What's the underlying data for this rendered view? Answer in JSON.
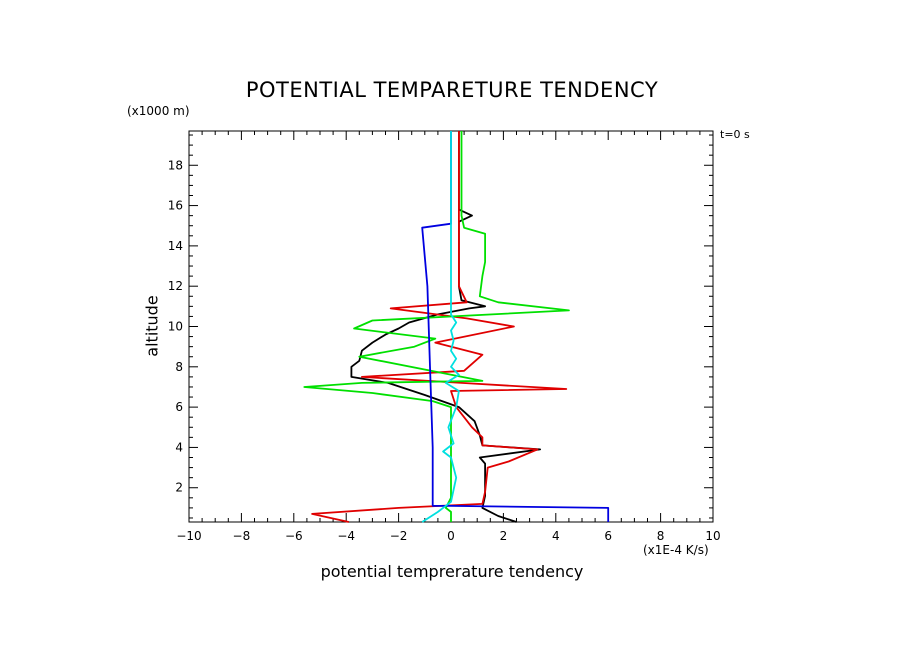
{
  "chart_data": {
    "type": "line",
    "title": "POTENTIAL TEMPARETURE TENDENCY",
    "xlabel": "potential temprerature tendency",
    "ylabel": "altitude",
    "x_unit": "(x1E-4 K/s)",
    "y_unit": "(x1000 m)",
    "time_label": "t=0 s",
    "xlim": [
      -10,
      10
    ],
    "ylim": [
      0.3,
      19.7
    ],
    "xticks": [
      -10,
      -8,
      -6,
      -4,
      -2,
      0,
      2,
      4,
      6,
      8,
      10
    ],
    "yticks": [
      2,
      4,
      6,
      8,
      10,
      12,
      14,
      16,
      18
    ],
    "grid": false,
    "series": [
      {
        "color": "#000000",
        "points": [
          [
            2.5,
            0.3
          ],
          [
            1.8,
            0.6
          ],
          [
            1.2,
            1.0
          ],
          [
            1.3,
            1.6
          ],
          [
            1.3,
            2.5
          ],
          [
            1.3,
            3.2
          ],
          [
            1.1,
            3.5
          ],
          [
            3.4,
            3.9
          ],
          [
            1.2,
            4.1
          ],
          [
            1.1,
            4.6
          ],
          [
            0.9,
            5.3
          ],
          [
            0.3,
            6.0
          ],
          [
            -1.0,
            6.6
          ],
          [
            -2.4,
            7.2
          ],
          [
            -3.8,
            7.5
          ],
          [
            -3.8,
            8.0
          ],
          [
            -3.5,
            8.3
          ],
          [
            -3.4,
            8.8
          ],
          [
            -3.0,
            9.2
          ],
          [
            -2.5,
            9.6
          ],
          [
            -2.0,
            9.9
          ],
          [
            -1.6,
            10.2
          ],
          [
            -0.5,
            10.6
          ],
          [
            0.7,
            10.9
          ],
          [
            1.3,
            11.0
          ],
          [
            0.4,
            11.3
          ],
          [
            0.3,
            12.0
          ],
          [
            0.3,
            13.5
          ],
          [
            0.3,
            14.8
          ],
          [
            0.3,
            15.2
          ],
          [
            0.8,
            15.5
          ],
          [
            0.3,
            15.8
          ],
          [
            0.3,
            17.0
          ],
          [
            0.3,
            18.5
          ],
          [
            0.3,
            19.7
          ]
        ]
      },
      {
        "color": "#e00000",
        "points": [
          [
            -3.9,
            0.3
          ],
          [
            -5.3,
            0.7
          ],
          [
            -2.0,
            1.0
          ],
          [
            1.2,
            1.2
          ],
          [
            1.3,
            1.8
          ],
          [
            1.4,
            3.0
          ],
          [
            2.2,
            3.3
          ],
          [
            3.3,
            3.9
          ],
          [
            1.2,
            4.1
          ],
          [
            1.2,
            4.5
          ],
          [
            0.8,
            5.0
          ],
          [
            0.2,
            6.0
          ],
          [
            0.0,
            6.8
          ],
          [
            4.4,
            6.9
          ],
          [
            0.4,
            7.2
          ],
          [
            -3.4,
            7.5
          ],
          [
            0.5,
            7.8
          ],
          [
            1.2,
            8.6
          ],
          [
            -0.6,
            9.2
          ],
          [
            2.4,
            10.0
          ],
          [
            0.6,
            10.4
          ],
          [
            -2.3,
            10.9
          ],
          [
            0.6,
            11.2
          ],
          [
            0.3,
            12.0
          ],
          [
            0.3,
            14.8
          ],
          [
            0.3,
            15.3
          ],
          [
            0.3,
            17.0
          ],
          [
            0.3,
            19.7
          ]
        ]
      },
      {
        "color": "#00e000",
        "points": [
          [
            0.0,
            0.3
          ],
          [
            0.0,
            0.8
          ],
          [
            -0.2,
            1.0
          ],
          [
            0.0,
            1.5
          ],
          [
            0.0,
            6.0
          ],
          [
            -0.7,
            6.3
          ],
          [
            -3.0,
            6.7
          ],
          [
            -5.6,
            7.0
          ],
          [
            -3.4,
            7.2
          ],
          [
            1.2,
            7.3
          ],
          [
            -3.5,
            8.5
          ],
          [
            -1.4,
            9.0
          ],
          [
            -0.6,
            9.4
          ],
          [
            -3.7,
            9.9
          ],
          [
            -3.0,
            10.3
          ],
          [
            4.5,
            10.8
          ],
          [
            1.8,
            11.2
          ],
          [
            1.1,
            11.5
          ],
          [
            1.2,
            12.5
          ],
          [
            1.3,
            13.2
          ],
          [
            1.3,
            14.0
          ],
          [
            1.3,
            14.6
          ],
          [
            0.5,
            14.9
          ],
          [
            0.4,
            15.5
          ],
          [
            0.4,
            16.5
          ],
          [
            0.4,
            18.0
          ],
          [
            0.4,
            19.2
          ],
          [
            0.4,
            19.7
          ]
        ]
      },
      {
        "color": "#0000e0",
        "points": [
          [
            6.0,
            0.3
          ],
          [
            6.0,
            1.0
          ],
          [
            0.0,
            1.1
          ],
          [
            -0.7,
            1.1
          ],
          [
            -0.7,
            4.0
          ],
          [
            -0.8,
            8.0
          ],
          [
            -0.9,
            12.0
          ],
          [
            -1.1,
            14.9
          ],
          [
            0.0,
            15.1
          ],
          [
            0.0,
            19.7
          ]
        ]
      },
      {
        "color": "#00e0e0",
        "points": [
          [
            -1.1,
            0.3
          ],
          [
            -0.5,
            0.8
          ],
          [
            0.0,
            1.3
          ],
          [
            0.2,
            2.5
          ],
          [
            0.0,
            3.5
          ],
          [
            -0.3,
            3.8
          ],
          [
            0.1,
            4.2
          ],
          [
            -0.1,
            5.0
          ],
          [
            0.2,
            6.0
          ],
          [
            0.3,
            6.8
          ],
          [
            -0.2,
            7.2
          ],
          [
            0.3,
            7.6
          ],
          [
            0.0,
            8.0
          ],
          [
            0.2,
            8.4
          ],
          [
            0.0,
            8.8
          ],
          [
            0.1,
            9.3
          ],
          [
            0.0,
            9.8
          ],
          [
            0.2,
            10.2
          ],
          [
            0.0,
            10.6
          ],
          [
            0.0,
            11.0
          ],
          [
            0.0,
            19.7
          ]
        ]
      }
    ]
  }
}
